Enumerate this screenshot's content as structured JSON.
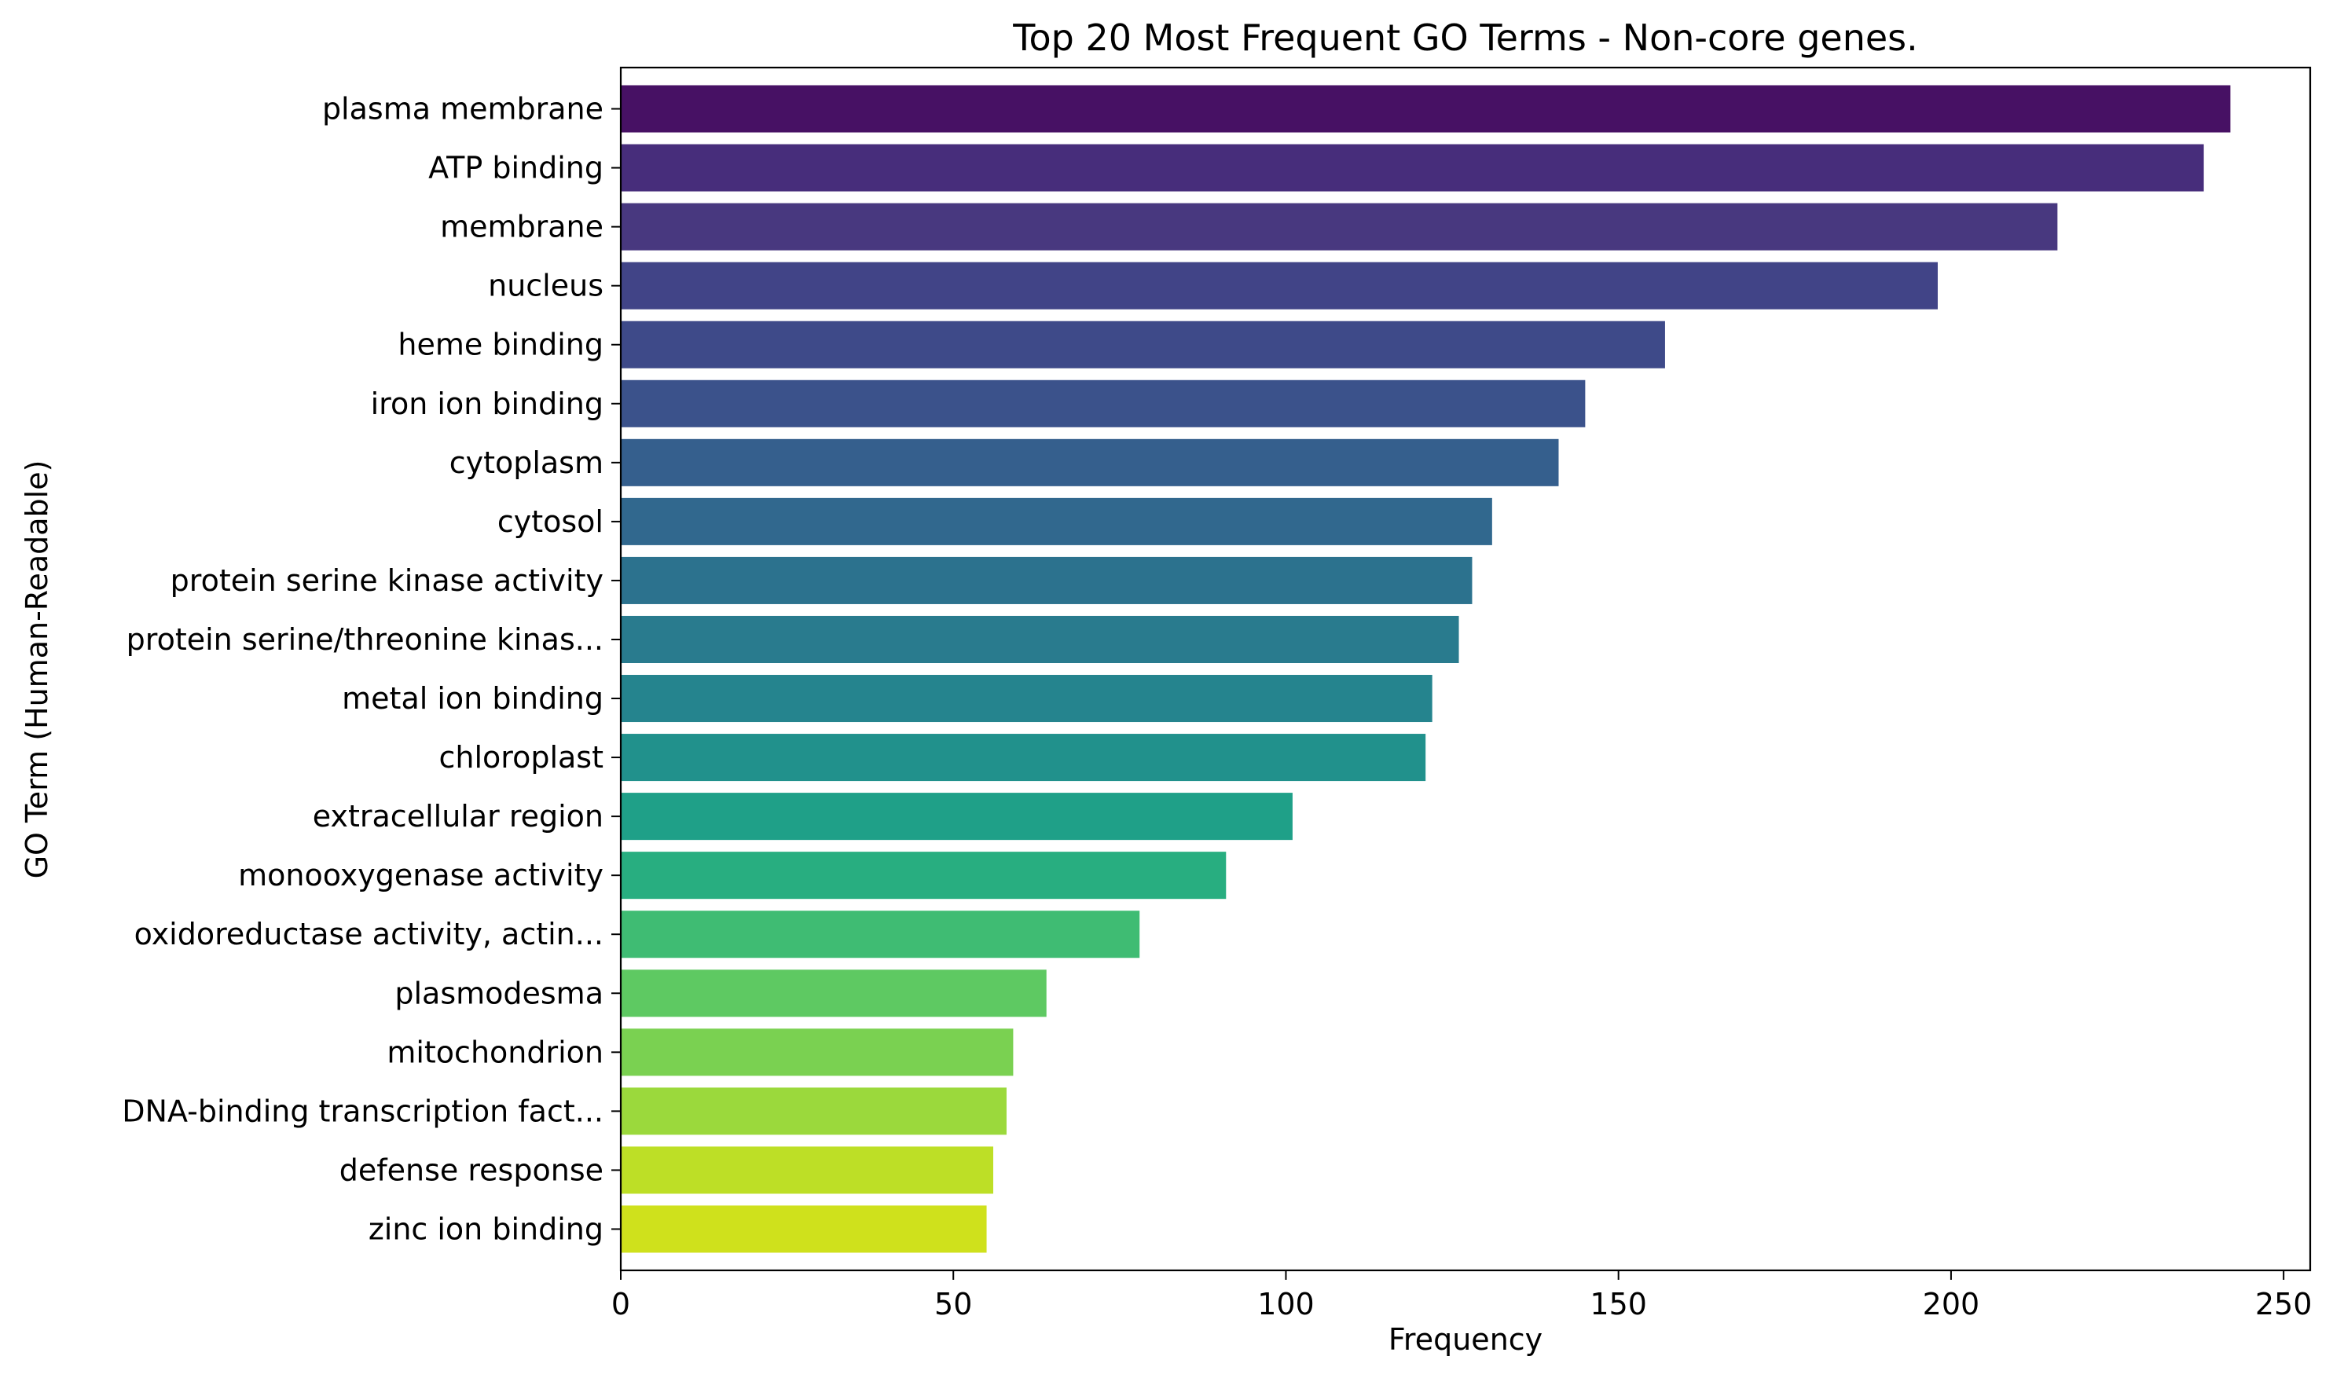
{
  "chart_data": {
    "type": "bar",
    "orientation": "horizontal",
    "title": "Top 20 Most Frequent GO Terms - Non-core genes.",
    "xlabel": "Frequency",
    "ylabel": "GO Term (Human-Readable)",
    "xlim": [
      0,
      254
    ],
    "xticks": [
      0,
      50,
      100,
      150,
      200,
      250
    ],
    "grid": false,
    "categories": [
      "plasma membrane",
      "ATP binding",
      "membrane",
      "nucleus",
      "heme binding",
      "iron ion binding",
      "cytoplasm",
      "cytosol",
      "protein serine kinase activity",
      "protein serine/threonine kinas...",
      "metal ion binding",
      "chloroplast",
      "extracellular region",
      "monooxygenase activity",
      "oxidoreductase activity, actin...",
      "plasmodesma",
      "mitochondrion",
      "DNA-binding transcription fact...",
      "defense response",
      "zinc ion binding"
    ],
    "values": [
      242,
      238,
      216,
      198,
      157,
      145,
      141,
      131,
      128,
      126,
      122,
      121,
      101,
      91,
      78,
      64,
      59,
      58,
      56,
      55
    ],
    "colors": [
      "#471164",
      "#472d7b",
      "#48387f",
      "#414487",
      "#3e4a89",
      "#3b528b",
      "#355f8d",
      "#31688e",
      "#2c728e",
      "#297b8e",
      "#25848e",
      "#21918c",
      "#1fa088",
      "#28ae80",
      "#3fbc73",
      "#5ec962",
      "#7ad151",
      "#9bd93c",
      "#bddf26",
      "#cfe11c"
    ]
  }
}
